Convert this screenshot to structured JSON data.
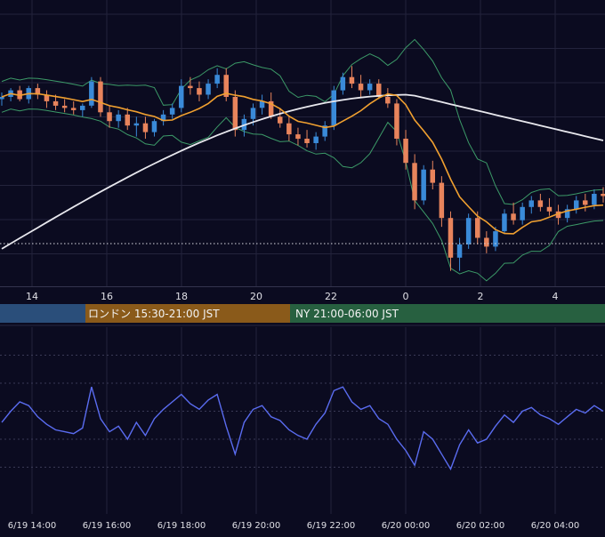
{
  "colors": {
    "background": "#0b0b20",
    "grid": "#23233c",
    "candle_up": "#3a8ad8",
    "candle_down": "#e8845c",
    "ma_short": "#f0a030",
    "ma_long": "#e8e8ee",
    "bollinger": "#3c9a68",
    "oscillator": "#5a6cf0",
    "session_tokyo": "#2a4e7a",
    "session_london": "#8a5a1a",
    "session_ny": "#276040",
    "axis_text": "#e0e0e6"
  },
  "sessions": [
    {
      "label": "",
      "color": "#2a4e7a"
    },
    {
      "label": "ロンドン 15:30-21:00 JST",
      "color": "#8a5a1a"
    },
    {
      "label": "NY 21:00-06:00 JST",
      "color": "#276040"
    }
  ],
  "chart_data": [
    {
      "type": "candlestick",
      "title": "",
      "x_tick_labels": [
        "14",
        "16",
        "18",
        "20",
        "22",
        "0",
        "2",
        "4"
      ],
      "x_range": [
        "6/19 13:00",
        "6/20 05:30"
      ],
      "overlays": [
        "moving average (short)",
        "moving average (long)",
        "Bollinger bands"
      ],
      "reference_line": "dotted horizontal line",
      "grid": true,
      "ohlc": [
        [
          100.0,
          100.3,
          99.7,
          100.1
        ],
        [
          100.1,
          100.5,
          99.9,
          100.4
        ],
        [
          100.4,
          100.6,
          99.9,
          100.0
        ],
        [
          100.0,
          100.6,
          99.8,
          100.5
        ],
        [
          100.5,
          100.7,
          100.0,
          100.2
        ],
        [
          100.2,
          100.4,
          99.6,
          99.9
        ],
        [
          99.9,
          100.2,
          99.5,
          99.7
        ],
        [
          99.7,
          100.0,
          99.4,
          99.6
        ],
        [
          99.6,
          99.9,
          99.3,
          99.5
        ],
        [
          99.5,
          99.8,
          99.2,
          99.7
        ],
        [
          99.7,
          101.0,
          99.6,
          100.8
        ],
        [
          100.8,
          101.0,
          99.2,
          99.4
        ],
        [
          99.4,
          99.7,
          98.7,
          99.0
        ],
        [
          99.0,
          99.5,
          98.7,
          99.3
        ],
        [
          99.3,
          99.6,
          98.6,
          98.8
        ],
        [
          98.8,
          99.2,
          98.3,
          98.9
        ],
        [
          98.9,
          99.2,
          98.2,
          98.5
        ],
        [
          98.5,
          99.1,
          98.3,
          99.0
        ],
        [
          99.0,
          99.5,
          98.8,
          99.3
        ],
        [
          99.3,
          99.8,
          99.1,
          99.6
        ],
        [
          99.6,
          100.9,
          99.4,
          100.6
        ],
        [
          100.6,
          101.0,
          100.2,
          100.5
        ],
        [
          100.5,
          100.8,
          99.9,
          100.2
        ],
        [
          100.2,
          100.9,
          100.0,
          100.7
        ],
        [
          100.7,
          101.4,
          100.5,
          101.1
        ],
        [
          101.1,
          101.4,
          99.9,
          100.1
        ],
        [
          100.1,
          100.4,
          98.3,
          98.6
        ],
        [
          98.6,
          99.3,
          98.3,
          99.1
        ],
        [
          99.1,
          99.8,
          98.8,
          99.6
        ],
        [
          99.6,
          100.2,
          99.3,
          99.9
        ],
        [
          99.9,
          100.3,
          99.1,
          99.2
        ],
        [
          99.2,
          99.6,
          98.7,
          98.9
        ],
        [
          98.9,
          99.2,
          98.1,
          98.4
        ],
        [
          98.4,
          98.7,
          97.9,
          98.2
        ],
        [
          98.2,
          98.6,
          97.8,
          98.0
        ],
        [
          98.0,
          98.5,
          97.7,
          98.3
        ],
        [
          98.3,
          99.0,
          98.1,
          98.8
        ],
        [
          98.8,
          100.6,
          98.6,
          100.4
        ],
        [
          100.4,
          101.2,
          100.2,
          101.0
        ],
        [
          101.0,
          101.5,
          100.5,
          100.7
        ],
        [
          100.7,
          101.1,
          100.1,
          100.4
        ],
        [
          100.4,
          100.9,
          100.2,
          100.7
        ],
        [
          100.7,
          100.9,
          100.0,
          100.1
        ],
        [
          100.1,
          100.5,
          99.6,
          99.8
        ],
        [
          99.8,
          100.0,
          97.9,
          98.2
        ],
        [
          98.2,
          98.6,
          96.8,
          97.1
        ],
        [
          97.1,
          97.5,
          95.0,
          95.4
        ],
        [
          95.4,
          97.0,
          95.2,
          96.8
        ],
        [
          96.8,
          97.2,
          95.9,
          96.2
        ],
        [
          96.2,
          96.5,
          94.2,
          94.6
        ],
        [
          94.6,
          94.9,
          92.2,
          92.8
        ],
        [
          92.8,
          93.7,
          92.2,
          93.4
        ],
        [
          93.4,
          94.8,
          93.2,
          94.6
        ],
        [
          94.6,
          94.9,
          93.4,
          93.7
        ],
        [
          93.7,
          94.0,
          93.0,
          93.3
        ],
        [
          93.3,
          94.2,
          93.1,
          94.0
        ],
        [
          94.0,
          95.0,
          93.9,
          94.8
        ],
        [
          94.8,
          95.3,
          94.3,
          94.5
        ],
        [
          94.5,
          95.3,
          94.3,
          95.1
        ],
        [
          95.1,
          95.6,
          94.8,
          95.4
        ],
        [
          95.4,
          95.7,
          94.9,
          95.1
        ],
        [
          95.1,
          95.5,
          94.7,
          94.9
        ],
        [
          94.9,
          95.2,
          94.3,
          94.6
        ],
        [
          94.6,
          95.2,
          94.4,
          95.0
        ],
        [
          95.0,
          95.6,
          94.8,
          95.4
        ],
        [
          95.4,
          95.7,
          94.9,
          95.2
        ],
        [
          95.2,
          95.9,
          95.0,
          95.7
        ],
        [
          95.7,
          96.0,
          95.3,
          95.6
        ]
      ]
    },
    {
      "type": "line",
      "title": "",
      "x_tick_labels": [
        "6/19 14:00",
        "6/19 16:00",
        "6/19 18:00",
        "6/19 20:00",
        "6/19 22:00",
        "6/20 00:00",
        "6/20 02:00",
        "6/20 04:00"
      ],
      "ylim": [
        0,
        100
      ],
      "grid": true,
      "series": [
        {
          "values": [
            49,
            55,
            60,
            58,
            52,
            48,
            45,
            44,
            43,
            46,
            68,
            51,
            44,
            47,
            40,
            49,
            42,
            51,
            56,
            60,
            64,
            59,
            56,
            61,
            64,
            47,
            32,
            49,
            56,
            58,
            52,
            50,
            45,
            42,
            40,
            48,
            54,
            66,
            68,
            60,
            56,
            58,
            51,
            48,
            40,
            34,
            26,
            44,
            40,
            32,
            24,
            37,
            45,
            38,
            40,
            47,
            53,
            49,
            55,
            57,
            53,
            51,
            48,
            52,
            56,
            54,
            58,
            55
          ]
        }
      ]
    }
  ]
}
